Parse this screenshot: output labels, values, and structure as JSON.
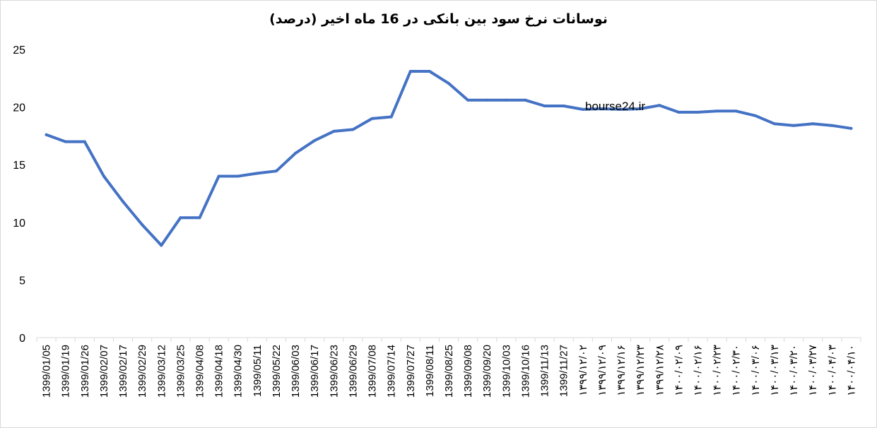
{
  "chart_data": {
    "type": "line",
    "title": "نوسانات نرخ سود بین بانکی در 16 ماه اخیر (درصد)",
    "watermark": "bourse24.ir",
    "ylim": [
      0,
      25
    ],
    "yticks": [
      0,
      5,
      10,
      15,
      20,
      25
    ],
    "grid": false,
    "line_color": "#4472C4",
    "categories": [
      "1399/01/05",
      "1399/01/19",
      "1399/01/26",
      "1399/02/07",
      "1399/02/17",
      "1399/02/29",
      "1399/03/12",
      "1399/03/25",
      "1399/04/08",
      "1399/04/18",
      "1399/04/30",
      "1399/05/11",
      "1399/05/22",
      "1399/06/03",
      "1399/06/17",
      "1399/06/23",
      "1399/06/29",
      "1399/07/08",
      "1399/07/14",
      "1399/07/27",
      "1399/08/11",
      "1399/08/25",
      "1399/09/08",
      "1399/09/20",
      "1399/10/03",
      "1399/10/16",
      "1399/11/13",
      "1399/11/27",
      "۱۳۹۹/۱۲/۰۲",
      "۱۳۹۹/۱۲/۰۹",
      "۱۳۹۹/۱۲/۱۶",
      "۱۳۹۹/۱۲/۲۳",
      "۱۳۹۹/۱۲/۲۸",
      "۱۴۰۰/۰۲/۰۹",
      "۱۴۰۰/۰۲/۱۶",
      "۱۴۰۰/۰۲/۲۳",
      "۱۴۰۰/۰۲/۳۰",
      "۱۴۰۰/۰۳/۰۶",
      "۱۴۰۰/۰۳/۱۳",
      "۱۴۰۰/۰۳/۲۰",
      "۱۴۰۰/۰۳/۲۷",
      "۱۴۰۰/۰۴/۰۳",
      "۱۴۰۰/۰۴/۱۰"
    ],
    "series": [
      {
        "values": [
          17.6,
          17.0,
          17.0,
          14.0,
          11.8,
          9.8,
          8.0,
          10.4,
          10.4,
          14.0,
          14.0,
          14.25,
          14.45,
          16.0,
          17.1,
          17.9,
          18.05,
          19.0,
          19.15,
          23.1,
          23.1,
          22.05,
          20.6,
          20.6,
          20.6,
          20.6,
          20.1,
          20.1,
          19.8,
          19.85,
          19.8,
          19.85,
          20.15,
          19.55,
          19.55,
          19.65,
          19.65,
          19.25,
          18.55,
          18.4,
          18.55,
          18.4,
          18.15
        ]
      }
    ]
  }
}
